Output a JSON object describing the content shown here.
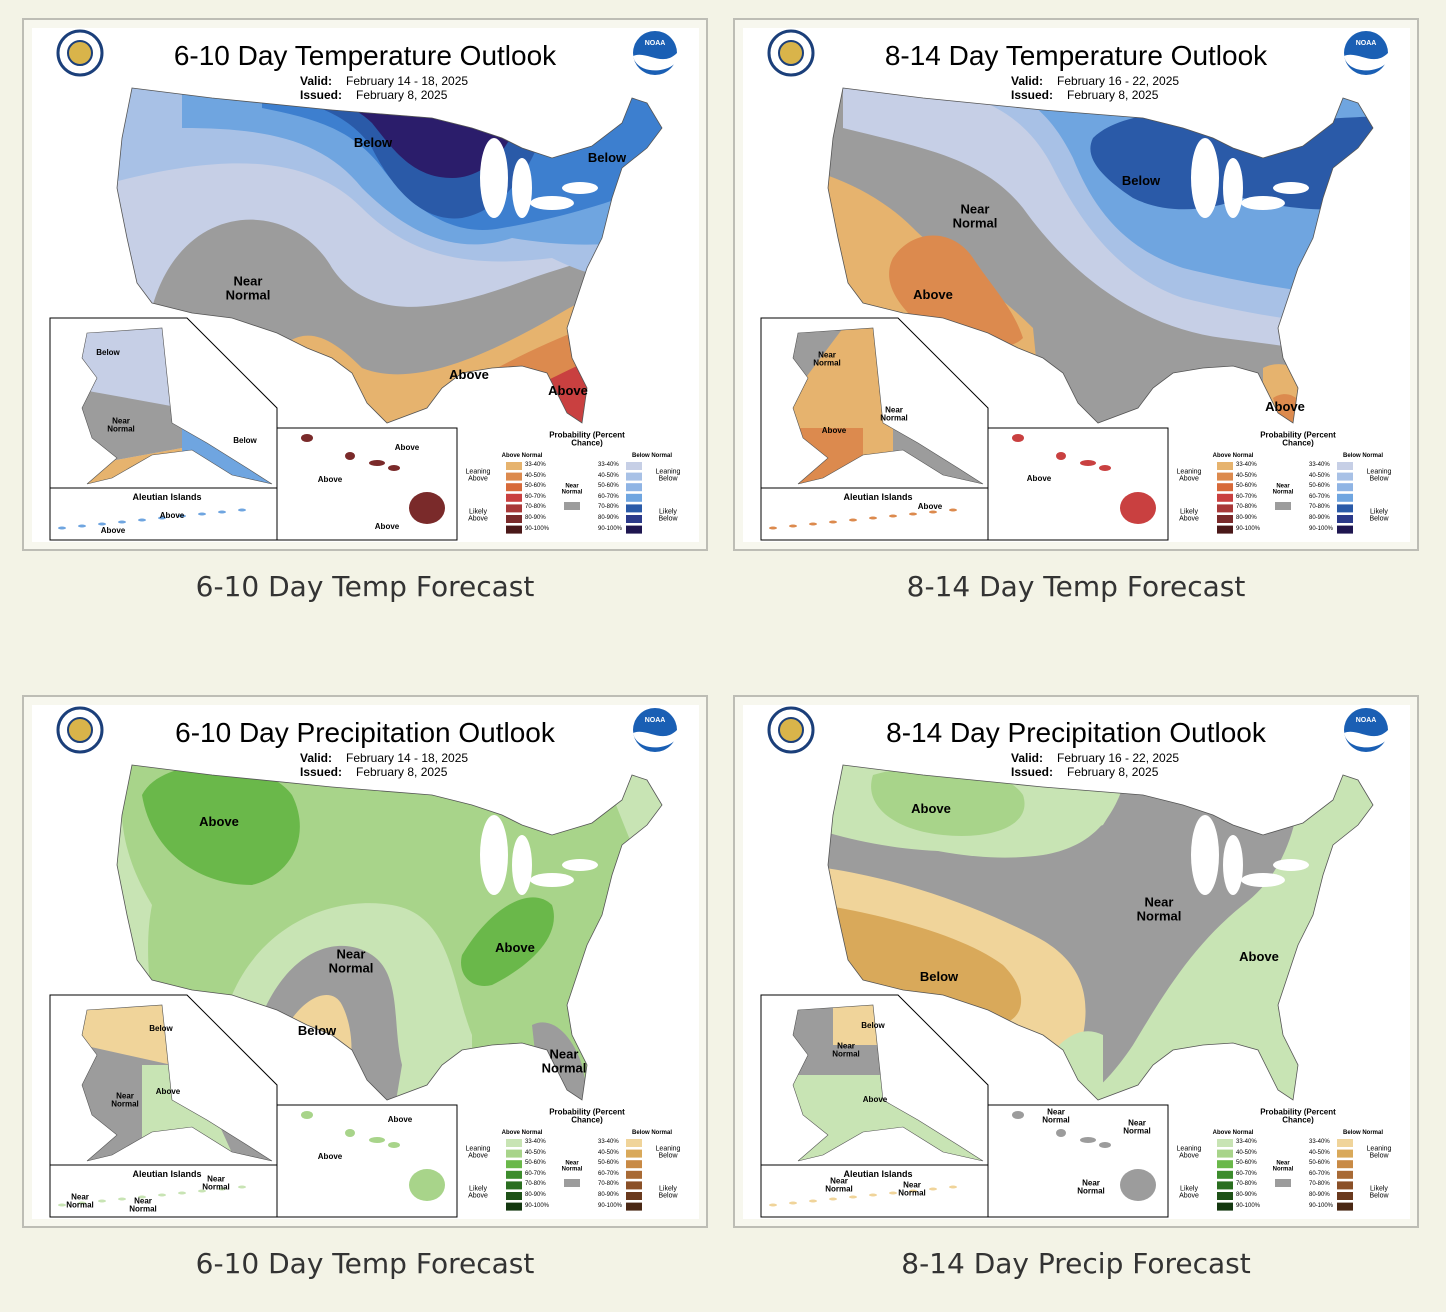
{
  "logo_text": "NOAA",
  "legend": {
    "title": "Probability (Percent Chance)",
    "above": "Above Normal",
    "below": "Below Normal",
    "leaning_above": "Leaning Above",
    "likely_above": "Likely Above",
    "near": "Near Normal",
    "leaning_below": "Leaning Below",
    "likely_below": "Likely Below",
    "ranges": [
      "33-40%",
      "40-50%",
      "50-60%",
      "60-70%",
      "70-80%",
      "80-90%",
      "90-100%"
    ]
  },
  "colors": {
    "temperature": {
      "above": [
        "#e6b36e",
        "#dc8a4e",
        "#d76a3a",
        "#c94040",
        "#a83838",
        "#7a2a2a",
        "#4a1818"
      ],
      "below": [
        "#c6cfe6",
        "#a8c1e6",
        "#8fb4e4",
        "#6fa5e0",
        "#2a5aa8",
        "#2b3a8a",
        "#1e1650"
      ]
    },
    "precipitation": {
      "above": [
        "#c8e4b4",
        "#a8d48a",
        "#6ab84a",
        "#3c8c2c",
        "#2a6e20",
        "#1f5218",
        "#143810"
      ],
      "below": [
        "#f0d49a",
        "#d9a95a",
        "#c88a45",
        "#a86a35",
        "#8a5028",
        "#6a3a1e",
        "#4a2814"
      ]
    }
  },
  "panels": [
    {
      "kind": "temperature",
      "title": "6-10 Day Temperature Outlook",
      "valid_label": "Valid:",
      "valid": "February 14 - 18, 2025",
      "issued_label": "Issued:",
      "issued": "February 8, 2025",
      "inset_title": "Aleutian Islands",
      "labels": {
        "us": [
          "Below",
          "Below",
          "Near Normal",
          "Above",
          "Above"
        ],
        "alaska": [
          "Below",
          "Near Normal",
          "Below"
        ],
        "aleutian": [
          "Above",
          "Above"
        ],
        "hawaii": [
          "Above",
          "Above",
          "Above"
        ]
      },
      "caption": "6-10 Day Temp Forecast"
    },
    {
      "kind": "temperature",
      "title": "8-14 Day Temperature Outlook",
      "valid_label": "Valid:",
      "valid": "February 16 - 22, 2025",
      "issued_label": "Issued:",
      "issued": "February 8, 2025",
      "inset_title": "Aleutian Islands",
      "labels": {
        "us": [
          "Below",
          "Near Normal",
          "Above",
          "Above"
        ],
        "alaska": [
          "Near Normal",
          "Above",
          "Near Normal"
        ],
        "aleutian": [
          "Above"
        ],
        "hawaii": [
          "Above"
        ]
      },
      "caption": "8-14 Day Temp Forecast"
    },
    {
      "kind": "precipitation",
      "title": "6-10 Day Precipitation Outlook",
      "valid_label": "Valid:",
      "valid": "February 14 - 18, 2025",
      "issued_label": "Issued:",
      "issued": "February 8, 2025",
      "inset_title": "Aleutian Islands",
      "labels": {
        "us": [
          "Above",
          "Near Normal",
          "Below",
          "Above",
          "Near Normal"
        ],
        "alaska": [
          "Below",
          "Near Normal",
          "Above"
        ],
        "aleutian": [
          "Near Normal",
          "Near Normal",
          "Near Normal"
        ],
        "hawaii": [
          "Above",
          "Above"
        ]
      },
      "caption": "6-10 Day Temp Forecast"
    },
    {
      "kind": "precipitation",
      "title": "8-14 Day Precipitation Outlook",
      "valid_label": "Valid:",
      "valid": "February 16 - 22, 2025",
      "issued_label": "Issued:",
      "issued": "February 8, 2025",
      "inset_title": "Aleutian Islands",
      "labels": {
        "us": [
          "Above",
          "Near Normal",
          "Below",
          "Above"
        ],
        "alaska": [
          "Below",
          "Near Normal",
          "Above"
        ],
        "aleutian": [
          "Near Normal",
          "Near Normal"
        ],
        "hawaii": [
          "Near Normal",
          "Near Normal",
          "Near Normal"
        ]
      },
      "caption": "8-14 Day Precip Forecast"
    }
  ]
}
